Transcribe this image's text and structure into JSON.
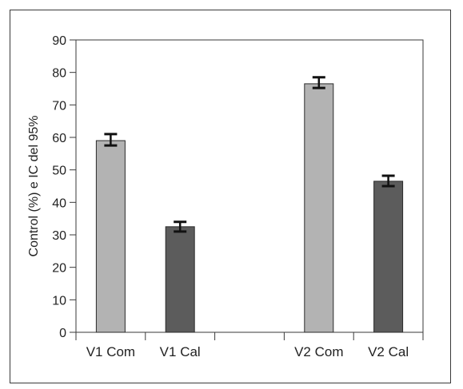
{
  "chart_data": {
    "type": "bar",
    "categories": [
      "V1 Com",
      "V1 Cal",
      "",
      "V2 Com",
      "V2 Cal"
    ],
    "values": [
      59,
      32.5,
      null,
      76.5,
      46.5
    ],
    "error_low": [
      57.5,
      31,
      null,
      75.2,
      45
    ],
    "error_high": [
      61,
      34,
      null,
      78.5,
      48.2
    ],
    "bar_colors": [
      "#b3b3b3",
      "#5c5c5c",
      null,
      "#b3b3b3",
      "#5c5c5c"
    ],
    "ylabel": "Control (%) e IC del 95%",
    "xlabel": "",
    "ylim": [
      0,
      90
    ],
    "yticks": [
      0,
      10,
      20,
      30,
      40,
      50,
      60,
      70,
      80,
      90
    ],
    "grid": false
  }
}
